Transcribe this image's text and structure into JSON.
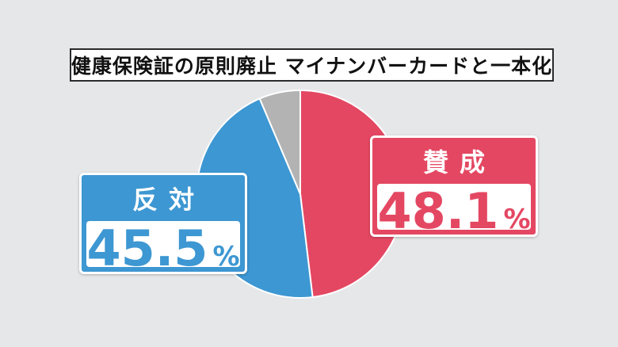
{
  "chart_data": {
    "type": "pie",
    "title": "健康保険証の原則廃止 マイナンバーカードと一本化",
    "slices": [
      {
        "label": "賛成",
        "value": 48.1,
        "color": "#e44762"
      },
      {
        "label": "反対",
        "value": 45.5,
        "color": "#3d97d2"
      },
      {
        "label": "",
        "value": 6.4,
        "color": "#b3b3b3"
      }
    ],
    "start_angle_deg": 0,
    "direction": "clockwise"
  },
  "callouts": {
    "yes": {
      "label": "賛成",
      "number": "48.1",
      "unit": "%"
    },
    "no": {
      "label": "反対",
      "number": "45.5",
      "unit": "%"
    }
  }
}
